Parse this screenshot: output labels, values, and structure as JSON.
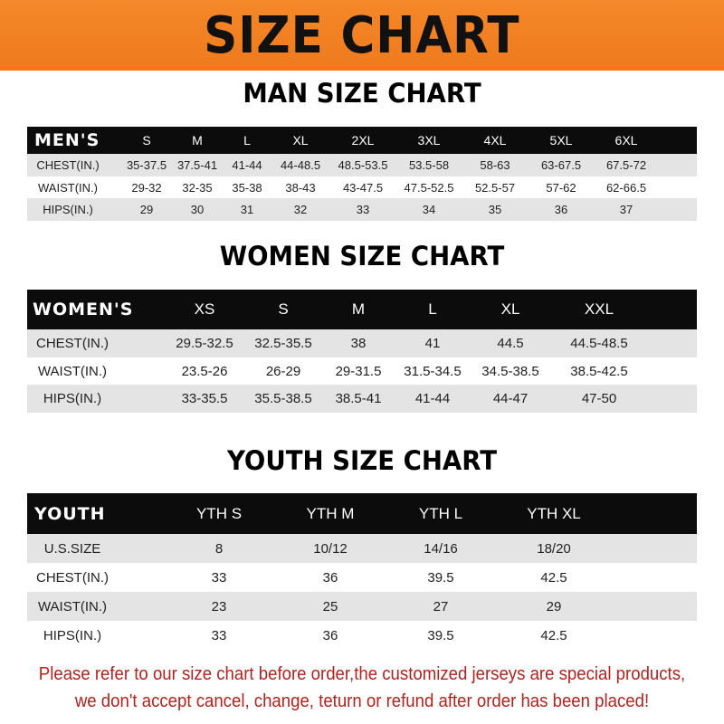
{
  "title": "SIZE CHART",
  "men": {
    "heading": "MAN SIZE CHART",
    "columns": [
      "MEN'S",
      "S",
      "M",
      "L",
      "XL",
      "2XL",
      "3XL",
      "4XL",
      "5XL",
      "6XL"
    ],
    "rows": [
      [
        "CHEST(IN.)",
        "35-37.5",
        "37.5-41",
        "41-44",
        "44-48.5",
        "48.5-53.5",
        "53.5-58",
        "58-63",
        "63-67.5",
        "67.5-72"
      ],
      [
        "WAIST(IN.)",
        "29-32",
        "32-35",
        "35-38",
        "38-43",
        "43-47.5",
        "47.5-52.5",
        "52.5-57",
        "57-62",
        "62-66.5"
      ],
      [
        "HIPS(IN.)",
        "29",
        "30",
        "31",
        "32",
        "33",
        "34",
        "35",
        "36",
        "37"
      ]
    ]
  },
  "women": {
    "heading": "WOMEN SIZE CHART",
    "columns": [
      "WOMEN'S",
      "XS",
      "S",
      "M",
      "L",
      "XL",
      "XXL"
    ],
    "rows": [
      [
        "CHEST(IN.)",
        "29.5-32.5",
        "32.5-35.5",
        "38",
        "41",
        "44.5",
        "44.5-48.5"
      ],
      [
        "WAIST(IN.)",
        "23.5-26",
        "26-29",
        "29-31.5",
        "31.5-34.5",
        "34.5-38.5",
        "38.5-42.5"
      ],
      [
        "HIPS(IN.)",
        "33-35.5",
        "35.5-38.5",
        "38.5-41",
        "41-44",
        "44-47",
        "47-50"
      ]
    ]
  },
  "youth": {
    "heading": "YOUTH SIZE CHART",
    "columns": [
      "YOUTH",
      "YTH S",
      "YTH M",
      "YTH L",
      "YTH XL"
    ],
    "rows": [
      [
        "U.S.SIZE",
        "8",
        "10/12",
        "14/16",
        "18/20"
      ],
      [
        "CHEST(IN.)",
        "33",
        "36",
        "39.5",
        "42.5"
      ],
      [
        "WAIST(IN.)",
        "23",
        "25",
        "27",
        "29"
      ],
      [
        "HIPS(IN.)",
        "33",
        "36",
        "39.5",
        "42.5"
      ]
    ]
  },
  "notice": {
    "line1": "Please refer to our size chart before order,the customized jerseys are special products,",
    "line2": "we don't accept cancel, change, teturn or refund after order has been placed!"
  },
  "colors": {
    "banner": "#f0801f",
    "header_row": "#0c0c0c",
    "stripe": "#e4e4e4",
    "notice": "#b3221d"
  }
}
